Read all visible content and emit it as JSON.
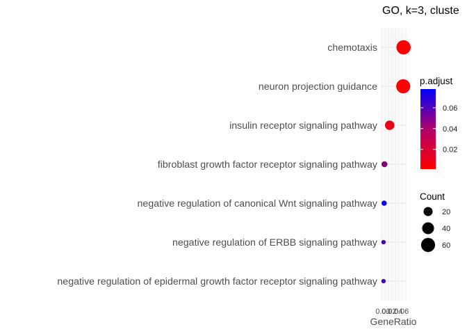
{
  "chart_data": {
    "type": "scatter",
    "title": "GO, k=3, cluste",
    "xlabel": "GeneRatio",
    "ylabel": "",
    "x_tick_labels": [
      "0.00",
      "0.02",
      "0.04",
      "0.06"
    ],
    "xlim": [
      0.0,
      0.07
    ],
    "grid": true,
    "categories": [
      "chemotaxis",
      "neuron projection guidance",
      "insulin receptor signaling pathway",
      "fibroblast growth factor receptor signaling pathway",
      "negative regulation of canonical Wnt signaling pathway",
      "negative regulation of ERBB signaling pathway",
      "negative regulation of epidermal growth factor receptor signaling pathway"
    ],
    "points": [
      {
        "term": "chemotaxis",
        "gene_ratio": 0.067,
        "count": 62,
        "p_adjust": 0.001
      },
      {
        "term": "neuron projection guidance",
        "gene_ratio": 0.066,
        "count": 60,
        "p_adjust": 0.001
      },
      {
        "term": "insulin receptor signaling pathway",
        "gene_ratio": 0.022,
        "count": 22,
        "p_adjust": 0.008
      },
      {
        "term": "fibroblast growth factor receptor signaling pathway",
        "gene_ratio": 0.005,
        "count": 6,
        "p_adjust": 0.038
      },
      {
        "term": "negative regulation of canonical Wnt signaling pathway",
        "gene_ratio": 0.004,
        "count": 4,
        "p_adjust": 0.076
      },
      {
        "term": "negative regulation of ERBB signaling pathway",
        "gene_ratio": 0.002,
        "count": 2,
        "p_adjust": 0.058
      },
      {
        "term": "negative regulation of epidermal growth factor receptor signaling pathway",
        "gene_ratio": 0.002,
        "count": 2,
        "p_adjust": 0.058
      }
    ],
    "color_legend": {
      "title": "p.adjust",
      "ticks": [
        0.02,
        0.04,
        0.06
      ],
      "tick_labels": [
        "0.02",
        "0.04",
        "0.06"
      ],
      "range": [
        0.001,
        0.078
      ],
      "low_color": "#ff0000",
      "high_color": "#0000ff"
    },
    "size_legend": {
      "title": "Count",
      "values": [
        20,
        40,
        60
      ],
      "labels": [
        "20",
        "40",
        "60"
      ]
    },
    "legend_position": "right"
  }
}
